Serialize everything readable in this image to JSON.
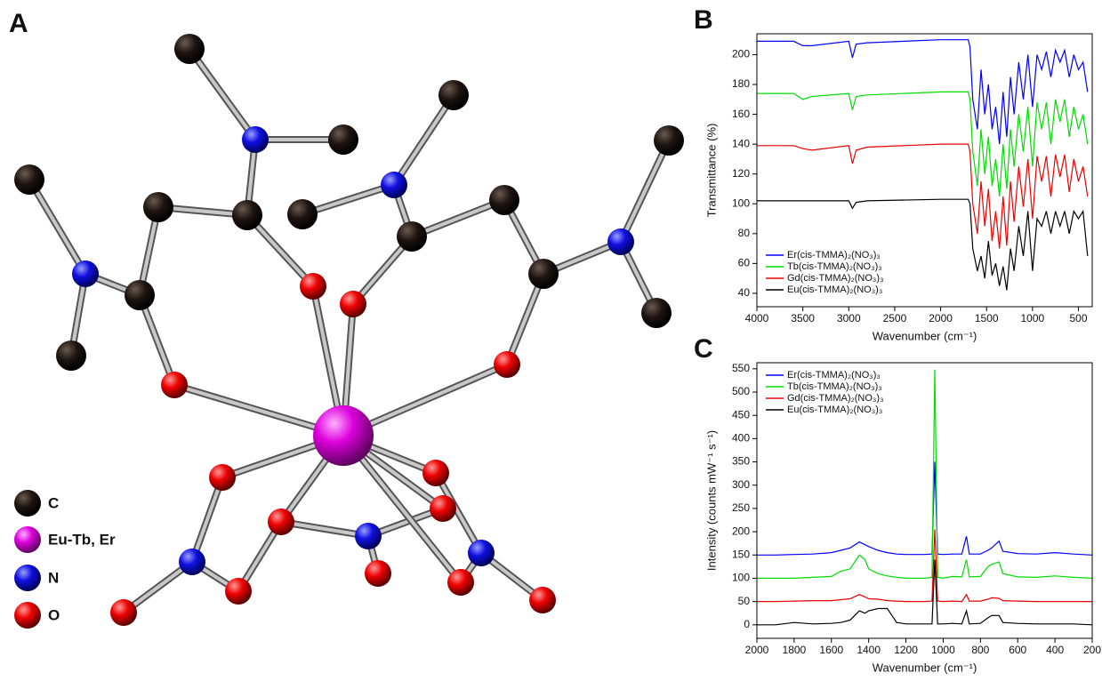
{
  "structure": {
    "panel_label": "A",
    "legend": [
      "C",
      "Eu-Tb, Er",
      "N",
      "O"
    ]
  },
  "chart_data": [
    {
      "type": "line",
      "panel_label": "B",
      "x_label": "Wavenumber (cm⁻¹)",
      "y_label": "Transmittance (%)",
      "x": [
        4000,
        3600,
        3500,
        3400,
        3000,
        2960,
        2920,
        2800,
        2000,
        1700,
        1680,
        1650,
        1600,
        1560,
        1520,
        1480,
        1440,
        1400,
        1360,
        1320,
        1280,
        1240,
        1200,
        1150,
        1100,
        1050,
        1000,
        950,
        900,
        850,
        800,
        750,
        700,
        650,
        600,
        550,
        500,
        450,
        400
      ],
      "series": [
        {
          "name": "Er(cis-TMMA)₂(NO₃)₃",
          "color": "#0000ff",
          "values": [
            209,
            209,
            206,
            206,
            209,
            198,
            207,
            208,
            210,
            210,
            205,
            170,
            150,
            190,
            160,
            180,
            150,
            165,
            140,
            175,
            145,
            185,
            160,
            195,
            170,
            200,
            165,
            200,
            190,
            202,
            185,
            203,
            195,
            203,
            185,
            200,
            190,
            195,
            175
          ]
        },
        {
          "name": "Tb(cis-TMMA)₂(NO₃)₃",
          "color": "#00dd00",
          "values": [
            174,
            174,
            170,
            172,
            174,
            163,
            172,
            173,
            175,
            175,
            170,
            135,
            112,
            150,
            120,
            145,
            112,
            130,
            105,
            140,
            110,
            150,
            125,
            160,
            135,
            165,
            125,
            168,
            150,
            168,
            140,
            170,
            155,
            170,
            145,
            165,
            150,
            160,
            140
          ]
        },
        {
          "name": "Gd(cis-TMMA)₂(NO₃)₃",
          "color": "#ee0000",
          "values": [
            139,
            139,
            137,
            136,
            139,
            127,
            136,
            138,
            140,
            140,
            135,
            100,
            80,
            115,
            85,
            110,
            75,
            95,
            70,
            105,
            72,
            115,
            88,
            125,
            98,
            130,
            90,
            132,
            115,
            132,
            105,
            133,
            118,
            133,
            108,
            130,
            115,
            125,
            105
          ]
        },
        {
          "name": "Eu(cis-TMMA)₂(NO₃)₃",
          "color": "#000000",
          "values": [
            102,
            102,
            102,
            102,
            102,
            97,
            101,
            102,
            103,
            103,
            100,
            70,
            55,
            65,
            50,
            75,
            52,
            60,
            45,
            58,
            42,
            70,
            55,
            85,
            65,
            95,
            55,
            90,
            85,
            95,
            80,
            95,
            85,
            95,
            80,
            95,
            90,
            95,
            65
          ]
        }
      ],
      "xlim": [
        4000,
        350
      ],
      "xticks": [
        4000,
        3500,
        3000,
        2500,
        2000,
        1500,
        1000,
        500
      ],
      "ylim": [
        31,
        214
      ],
      "yticks": [
        40,
        60,
        80,
        100,
        120,
        140,
        160,
        180,
        200
      ],
      "legend": "lower left"
    },
    {
      "type": "line",
      "panel_label": "C",
      "x_label": "Wavenumber (cm⁻¹)",
      "y_label": "Intensity (counts mW⁻¹ s⁻¹)",
      "x": [
        2000,
        1900,
        1800,
        1700,
        1600,
        1550,
        1500,
        1450,
        1420,
        1400,
        1350,
        1300,
        1250,
        1200,
        1100,
        1060,
        1045,
        1030,
        1000,
        950,
        900,
        875,
        860,
        800,
        760,
        740,
        700,
        680,
        600,
        500,
        400,
        300,
        200
      ],
      "series": [
        {
          "name": "Er(cis-TMMA)₂(NO₃)₃",
          "color": "#0000ff",
          "values": [
            150,
            150,
            151,
            152,
            155,
            160,
            165,
            178,
            172,
            168,
            160,
            155,
            152,
            151,
            151,
            152,
            350,
            152,
            151,
            152,
            152,
            190,
            152,
            152,
            160,
            165,
            180,
            158,
            153,
            152,
            155,
            152,
            150
          ]
        },
        {
          "name": "Tb(cis-TMMA)₂(NO₃)₃",
          "color": "#00dd00",
          "values": [
            100,
            100,
            100,
            102,
            104,
            115,
            120,
            150,
            140,
            120,
            110,
            105,
            102,
            100,
            100,
            102,
            548,
            102,
            100,
            104,
            103,
            140,
            103,
            104,
            125,
            130,
            135,
            110,
            103,
            102,
            105,
            102,
            100
          ]
        },
        {
          "name": "Gd(cis-TMMA)₂(NO₃)₃",
          "color": "#ee0000",
          "values": [
            50,
            50,
            51,
            52,
            52,
            54,
            56,
            65,
            60,
            56,
            55,
            52,
            51,
            50,
            50,
            51,
            205,
            51,
            50,
            51,
            50,
            65,
            51,
            51,
            55,
            58,
            57,
            52,
            51,
            50,
            50,
            50,
            50
          ]
        },
        {
          "name": "Eu(cis-TMMA)₂(NO₃)₃",
          "color": "#000000",
          "values": [
            0,
            0,
            5,
            2,
            3,
            5,
            10,
            30,
            25,
            30,
            35,
            35,
            5,
            2,
            2,
            2,
            140,
            2,
            2,
            3,
            2,
            30,
            2,
            3,
            15,
            20,
            20,
            5,
            3,
            2,
            2,
            2,
            0
          ]
        }
      ],
      "xlim": [
        2000,
        200
      ],
      "xticks": [
        2000,
        1800,
        1600,
        1400,
        1200,
        1000,
        800,
        600,
        400,
        200
      ],
      "ylim": [
        -29,
        563
      ],
      "yticks": [
        0,
        50,
        100,
        150,
        200,
        250,
        300,
        350,
        400,
        450,
        500,
        550
      ],
      "legend": "upper left"
    }
  ]
}
